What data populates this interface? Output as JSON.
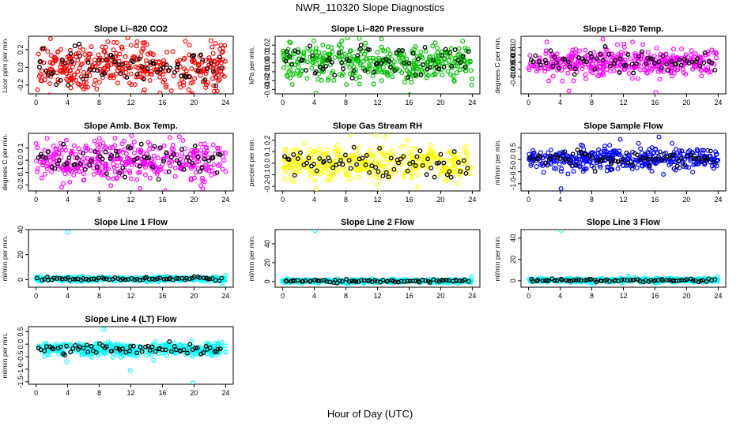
{
  "page_title": "NWR_110320  Slope Diagnostics",
  "x_axis_label": "Hour of Day (UTC)",
  "colors": {
    "black": "#000000"
  },
  "chart_data": [
    {
      "type": "scatter",
      "title": "Slope Li–820 CO2",
      "ylabel": "Licor ppm per min.",
      "xlim": [
        0,
        24
      ],
      "ylim": [
        -0.3,
        0.35
      ],
      "xticks": [
        "0",
        "4",
        "8",
        "12",
        "16",
        "20",
        "24"
      ],
      "yticks": [
        -0.2,
        0,
        0.2
      ],
      "ytick_labels": [
        "-0.2",
        "0.0",
        "0.2"
      ],
      "color": "#ff0000",
      "spread": 0.14,
      "center": 0,
      "npoints": 380,
      "outliers": []
    },
    {
      "type": "scatter",
      "title": "Slope Li–820 Pressure",
      "ylabel": "kPa per min.",
      "xlim": [
        0,
        24
      ],
      "ylim": [
        -0.035,
        0.03
      ],
      "xticks": [
        "0",
        "4",
        "8",
        "12",
        "16",
        "20",
        "24"
      ],
      "yticks": [
        -0.03,
        -0.02,
        -0.01,
        0,
        0.01,
        0.02
      ],
      "ytick_labels": [
        "-0.03",
        "-0.02",
        "-0.01",
        "0.00",
        "0.01",
        "0.02"
      ],
      "color": "#00c000",
      "spread": 0.011,
      "center": 0.001,
      "npoints": 380,
      "outliers": [
        [
          4.2,
          -0.034
        ],
        [
          8.2,
          0.028
        ],
        [
          12.5,
          0.027
        ],
        [
          23.9,
          -0.025
        ]
      ]
    },
    {
      "type": "scatter",
      "title": "Slope Li–820 Temp.",
      "ylabel": "degrees C per min.",
      "xlim": [
        0,
        24
      ],
      "ylim": [
        -0.022,
        0.018
      ],
      "xticks": [
        "0",
        "4",
        "8",
        "12",
        "16",
        "20",
        "24"
      ],
      "yticks": [
        -0.01,
        -0.005,
        0,
        0.005,
        0.01
      ],
      "ytick_labels": [
        "-0.010",
        "-0.005",
        "0.000",
        "0.005",
        "0.010"
      ],
      "color": "#ff00ff",
      "spread": 0.005,
      "center": -0.0005,
      "npoints": 380,
      "outliers": [
        [
          2.3,
          0.014
        ],
        [
          5.1,
          -0.02
        ],
        [
          9.4,
          0.016
        ],
        [
          16.1,
          -0.021
        ]
      ]
    },
    {
      "type": "scatter",
      "title": "Slope Amb. Box Temp.",
      "ylabel": "degrees C per min.",
      "xlim": [
        0,
        24
      ],
      "ylim": [
        -0.25,
        0.22
      ],
      "xticks": [
        "0",
        "4",
        "8",
        "12",
        "16",
        "20",
        "24"
      ],
      "yticks": [
        -0.2,
        -0.1,
        0,
        0.1
      ],
      "ytick_labels": [
        "-0.2",
        "-0.1",
        "0.0",
        "0.1"
      ],
      "color": "#ff00ff",
      "spread": 0.08,
      "center": 0.005,
      "npoints": 380,
      "outliers": [
        [
          13.2,
          -0.23
        ],
        [
          1.4,
          0.18
        ]
      ]
    },
    {
      "type": "scatter",
      "title": "Slope Gas Stream RH",
      "ylabel": "percent per min.",
      "xlim": [
        0,
        24
      ],
      "ylim": [
        -0.24,
        0.26
      ],
      "xticks": [
        "0",
        "4",
        "8",
        "12",
        "16",
        "20",
        "24"
      ],
      "yticks": [
        -0.2,
        -0.1,
        0,
        0.1,
        0.2
      ],
      "ytick_labels": [
        "-0.2",
        "-0.1",
        "0.0",
        "0.1",
        "0.2"
      ],
      "color": "#ffff00",
      "spread": 0.08,
      "center": 0,
      "npoints": 380,
      "outliers": [
        [
          8.7,
          0.25
        ],
        [
          4.3,
          -0.22
        ]
      ]
    },
    {
      "type": "scatter",
      "title": "Slope Sample Flow",
      "ylabel": "ml/min per min.",
      "xlim": [
        0,
        24
      ],
      "ylim": [
        -1.3,
        1.1
      ],
      "xticks": [
        "0",
        "4",
        "8",
        "12",
        "16",
        "20",
        "24"
      ],
      "yticks": [
        -1,
        -0.5,
        0,
        0.5
      ],
      "ytick_labels": [
        "-1.0",
        "-0.5",
        "0.0",
        "0.5"
      ],
      "color": "#0000ff",
      "spread": 0.22,
      "center": 0.03,
      "npoints": 380,
      "outliers": [
        [
          4.1,
          -1.2
        ],
        [
          16.5,
          0.95
        ],
        [
          11.6,
          0.85
        ]
      ]
    },
    {
      "type": "scatter",
      "title": "Slope Line 1 Flow",
      "ylabel": "ml/min per min.",
      "xlim": [
        0,
        24
      ],
      "ylim": [
        -6,
        40
      ],
      "xticks": [
        "0",
        "4",
        "8",
        "12",
        "16",
        "20",
        "24"
      ],
      "yticks": [
        0,
        20,
        40
      ],
      "ytick_labels": [
        "0",
        "20",
        "40"
      ],
      "color": "#00ffff",
      "spread": 0.9,
      "center": 0.5,
      "npoints": 380,
      "outliers": [
        [
          4.0,
          38
        ],
        [
          23.6,
          -5
        ],
        [
          24.0,
          3.5
        ]
      ]
    },
    {
      "type": "scatter",
      "title": "Slope Line 2 Flow",
      "ylabel": "ml/min per min.",
      "xlim": [
        0,
        24
      ],
      "ylim": [
        -6,
        55
      ],
      "xticks": [
        "0",
        "4",
        "8",
        "12",
        "16",
        "20",
        "24"
      ],
      "yticks": [
        0,
        20,
        40
      ],
      "ytick_labels": [
        "0",
        "20",
        "40"
      ],
      "color": "#00ffff",
      "spread": 0.9,
      "center": 0.5,
      "npoints": 380,
      "outliers": [
        [
          4.1,
          54
        ],
        [
          8.3,
          -5
        ],
        [
          23.9,
          5
        ]
      ]
    },
    {
      "type": "scatter",
      "title": "Slope Line 3 Flow",
      "ylabel": "ml/min per min.",
      "xlim": [
        0,
        24
      ],
      "ylim": [
        -6,
        48
      ],
      "xticks": [
        "0",
        "4",
        "8",
        "12",
        "16",
        "20",
        "24"
      ],
      "yticks": [
        0,
        20,
        40
      ],
      "ytick_labels": [
        "0",
        "20",
        "40"
      ],
      "color": "#00ffff",
      "spread": 0.9,
      "center": 0.5,
      "npoints": 380,
      "outliers": [
        [
          4.1,
          47
        ],
        [
          8.2,
          -5
        ],
        [
          12.6,
          4.5
        ],
        [
          23.9,
          4
        ]
      ]
    },
    {
      "type": "scatter",
      "title": "Slope Line 4 (LT) Flow",
      "ylabel": "ml/min per min.",
      "xlim": [
        0,
        24
      ],
      "ylim": [
        -1.6,
        0.7
      ],
      "xticks": [
        "0",
        "4",
        "8",
        "12",
        "16",
        "20",
        "24"
      ],
      "yticks": [
        -1.5,
        -1,
        -0.5,
        0,
        0.5
      ],
      "ytick_labels": [
        "-1.5",
        "-1.0",
        "-0.5",
        "0.0",
        "0.5"
      ],
      "color": "#00ffff",
      "spread": 0.13,
      "center": -0.2,
      "npoints": 380,
      "outliers": [
        [
          19.9,
          -1.55
        ],
        [
          11.9,
          -1.05
        ],
        [
          8.6,
          0.6
        ],
        [
          3.9,
          -0.7
        ]
      ]
    }
  ]
}
